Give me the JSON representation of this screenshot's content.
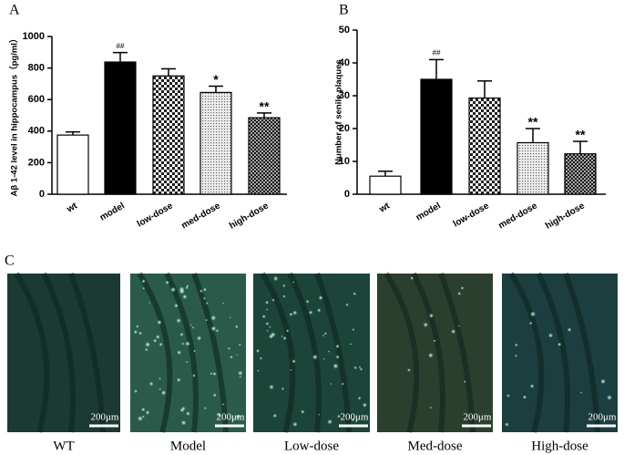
{
  "chart_data": [
    {
      "type": "bar",
      "panel_label": "A",
      "ylabel": "Aβ 1-42 level in hippocampus（pg/ml）",
      "categories": [
        "wt",
        "model",
        "low-dose",
        "med-dose",
        "high-dose"
      ],
      "values": [
        375,
        838,
        750,
        645,
        485
      ],
      "errors": [
        20,
        60,
        45,
        40,
        30
      ],
      "annotations": [
        null,
        "##",
        null,
        "*",
        "**"
      ],
      "fills": [
        "white",
        "black",
        "checker",
        "dots",
        "crosshatch"
      ],
      "ylim": [
        0,
        1000
      ],
      "yticks": [
        0,
        200,
        400,
        600,
        800,
        1000
      ]
    },
    {
      "type": "bar",
      "panel_label": "B",
      "ylabel": "Number of senile plaques",
      "categories": [
        "wt",
        "model",
        "low-dose",
        "med-dose",
        "high-dose"
      ],
      "values": [
        5.5,
        35,
        29.3,
        15.7,
        12.3
      ],
      "errors": [
        1.5,
        6,
        5.2,
        4.3,
        3.8
      ],
      "annotations": [
        null,
        "##",
        null,
        "**",
        "**"
      ],
      "fills": [
        "white",
        "black",
        "checker",
        "dots",
        "crosshatch"
      ],
      "ylim": [
        0,
        50
      ],
      "yticks": [
        0,
        10,
        20,
        30,
        40,
        50
      ]
    }
  ],
  "panel_c": {
    "panel_label": "C",
    "images": [
      {
        "label": "WT",
        "scale_bar": "200μm"
      },
      {
        "label": "Model",
        "scale_bar": "200μm"
      },
      {
        "label": "Low-dose",
        "scale_bar": "200μm"
      },
      {
        "label": "Med-dose",
        "scale_bar": "200μm"
      },
      {
        "label": "High-dose",
        "scale_bar": "200μm"
      }
    ]
  }
}
